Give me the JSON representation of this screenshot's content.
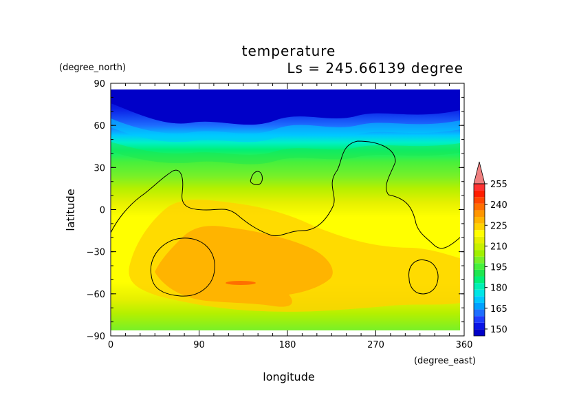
{
  "chart_data": {
    "type": "heatmap",
    "title": "temperature",
    "subtitle": "Ls = 245.66139 degree",
    "xlabel": "longitude",
    "ylabel": "latitude",
    "xunits": "(degree_east)",
    "yunits": "(degree_north)",
    "xlim": [
      0,
      360
    ],
    "ylim": [
      -90,
      90
    ],
    "xticks": [
      "0",
      "90",
      "180",
      "270",
      "360"
    ],
    "yticks": [
      "90",
      "60",
      "30",
      "0",
      "−30",
      "−60",
      "−90"
    ],
    "colorbar": {
      "labels": [
        "255",
        "240",
        "225",
        "210",
        "195",
        "180",
        "165",
        "150"
      ],
      "levels": [
        145,
        150,
        155,
        160,
        165,
        170,
        175,
        180,
        185,
        190,
        195,
        200,
        205,
        210,
        215,
        220,
        225,
        230,
        235,
        240,
        245,
        250,
        255,
        260
      ],
      "colors": [
        "#0000c8",
        "#0a14e6",
        "#1e3cff",
        "#1e6eff",
        "#00a0ff",
        "#00c8ff",
        "#00e6e6",
        "#00f0b4",
        "#00f078",
        "#1ee650",
        "#46f03c",
        "#78f028",
        "#a0f000",
        "#c8f000",
        "#e6f000",
        "#ffff00",
        "#ffd200",
        "#ffb400",
        "#ff9600",
        "#ff6e00",
        "#ff4600",
        "#ff1e00",
        "#ff3232",
        "#f08080"
      ]
    }
  }
}
